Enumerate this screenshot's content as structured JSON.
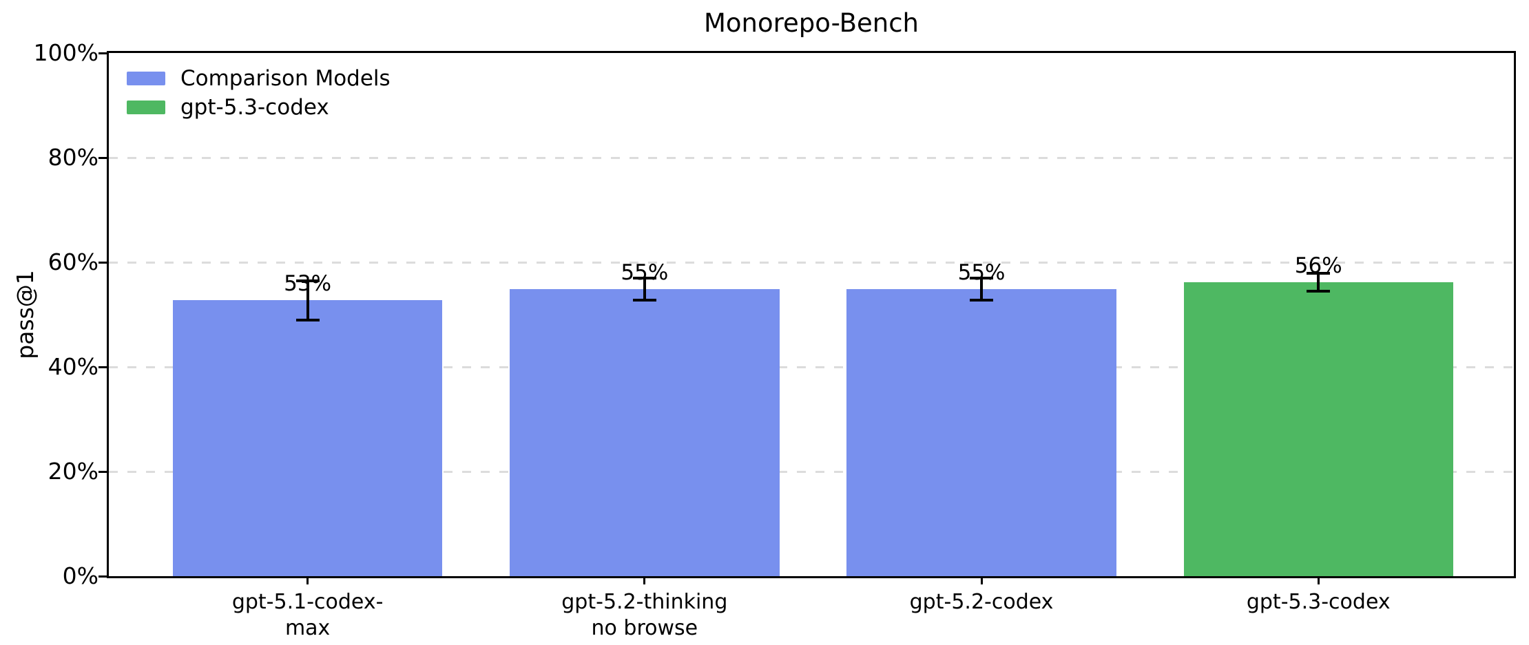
{
  "chart_data": {
    "type": "bar",
    "title": "Monorepo-Bench",
    "xlabel": "",
    "ylabel": "pass@1",
    "categories": [
      "gpt-5.1-codex-\nmax",
      "gpt-5.2-thinking\nno browse",
      "gpt-5.2-codex",
      "gpt-5.3-codex"
    ],
    "values": [
      52.7,
      54.9,
      54.9,
      56.2
    ],
    "value_labels": [
      "53%",
      "55%",
      "55%",
      "56%"
    ],
    "errors": [
      3.8,
      2.1,
      2.1,
      1.7
    ],
    "bar_colors": [
      "#7890ee",
      "#7890ee",
      "#7890ee",
      "#4eb862"
    ],
    "ylim": [
      0,
      100
    ],
    "xlim": [
      -0.59,
      3.58
    ],
    "bar_width": 0.8,
    "yticks": {
      "values": [
        0,
        20,
        40,
        60,
        80,
        100
      ],
      "labels": [
        "0%",
        "20%",
        "40%",
        "60%",
        "80%",
        "100%"
      ]
    },
    "grid": {
      "axis": "y",
      "style": "dashed",
      "color": "#dcdcdc",
      "below_bars": true
    },
    "legend": {
      "position": "upper-left",
      "frame": false,
      "items": [
        {
          "label": "Comparison Models",
          "color": "#7890ee"
        },
        {
          "label": "gpt-5.3-codex",
          "color": "#4eb862"
        }
      ]
    },
    "colors": {
      "comparison": "#7890ee",
      "highlight": "#4eb862",
      "grid": "#dcdcdc",
      "axis": "#000000"
    }
  }
}
